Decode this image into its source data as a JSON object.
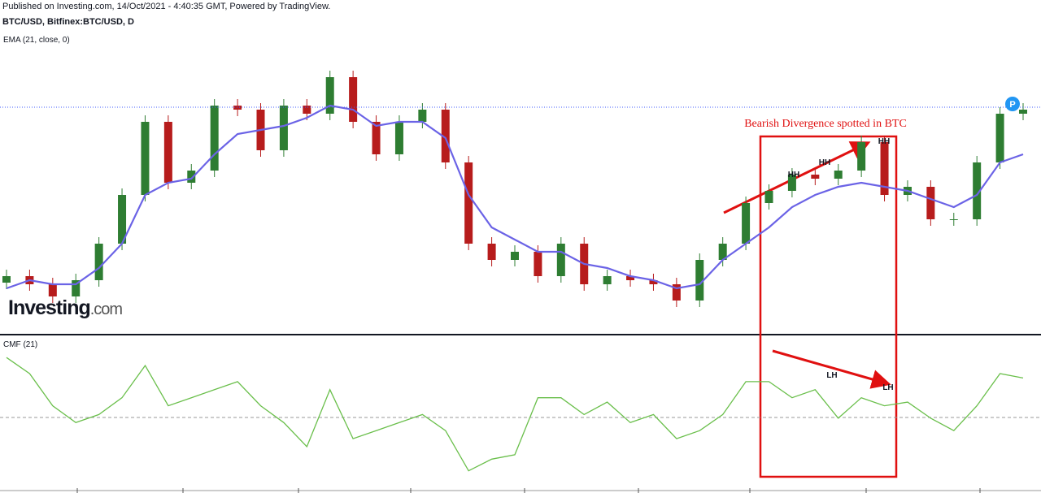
{
  "header": [
    "Published on Investing.com, 14/Oct/2021 - 4:40:35 GMT, Powered by TradingView.",
    "BTC/USD, Bitfinex:BTC/USD, D"
  ],
  "logo": {
    "brand": "Investing",
    "suffix": ".com"
  },
  "chart_data": [
    {
      "type": "candlestick",
      "open": [
        16,
        18,
        15.5,
        11.75,
        16.75,
        28,
        43,
        65.5,
        46.75,
        50.5,
        70.5,
        69.25,
        56.75,
        70.5,
        68,
        79.25,
        65.5,
        55.5,
        65.5,
        69.25,
        53,
        28,
        23,
        25.5,
        18,
        28,
        15.5,
        18,
        16.75,
        15.5,
        10.5,
        23,
        28,
        40.5,
        44.25,
        49.25,
        48,
        50.5,
        59.25,
        43,
        45.5,
        35.5,
        35.5,
        53,
        68
      ],
      "high": [
        20,
        20,
        17.5,
        18.75,
        30,
        45,
        67.5,
        67.5,
        52.5,
        72.5,
        72.5,
        71.25,
        72.5,
        72.5,
        81.25,
        81.25,
        67.5,
        67.5,
        71.25,
        71.25,
        55,
        30,
        27.5,
        27.5,
        30,
        30,
        20,
        20,
        18.75,
        17.5,
        25,
        30,
        42.5,
        46.25,
        51.25,
        51.25,
        52.5,
        61.25,
        61.25,
        47.5,
        47.5,
        37.5,
        55,
        70,
        71.25
      ],
      "low": [
        14,
        13.5,
        9.75,
        9.75,
        14.75,
        26,
        41,
        44.75,
        44.75,
        48.5,
        67.25,
        54.75,
        54.75,
        66,
        66,
        63.5,
        53.5,
        53.5,
        63.5,
        51,
        26,
        21,
        21,
        16,
        16,
        13.5,
        13.5,
        14.75,
        13.5,
        8.5,
        8.5,
        21,
        26,
        38.5,
        42.25,
        46,
        46,
        48.5,
        41,
        41,
        33.5,
        33.5,
        33.5,
        51,
        66
      ],
      "close": [
        18,
        15.5,
        11.75,
        16.75,
        28,
        43,
        65.5,
        46.75,
        50.5,
        70.5,
        69.25,
        56.75,
        70.5,
        68,
        79.25,
        65.5,
        55.5,
        65.5,
        69.25,
        53,
        28,
        23,
        25.5,
        18,
        28,
        15.5,
        18,
        16.75,
        15.5,
        10.5,
        23,
        28,
        40.5,
        44.25,
        49.25,
        48,
        50.5,
        59.25,
        43,
        45.5,
        35.5,
        35.5,
        53,
        68,
        69.25
      ],
      "up_color": "#2e7d32",
      "down_color": "#b71c1c",
      "series": [
        {
          "name": "EMA (21, close, 0)",
          "color": "#6b63e6",
          "values": [
            14.25,
            16.75,
            15.5,
            15.5,
            20.5,
            28,
            43,
            46.75,
            48,
            55.5,
            61.75,
            63,
            64.25,
            66.75,
            70.5,
            69.25,
            64.25,
            65.5,
            65.5,
            60.5,
            43,
            33,
            29.25,
            25.5,
            25.5,
            21.75,
            20.5,
            18,
            16.75,
            14.25,
            15.5,
            23,
            28,
            33,
            39.25,
            43,
            45.5,
            46.75,
            45.5,
            44.25,
            41.75,
            39.25,
            43,
            53,
            55.5
          ]
        }
      ],
      "price_line": 70,
      "marker_label": "P",
      "ylim": [
        0,
        100
      ],
      "annotations": [
        "Bearish Divergence spotted in BTC",
        "HH",
        "HH",
        "HH"
      ]
    },
    {
      "type": "line",
      "series": [
        {
          "name": "CMF (21)",
          "color": "#6abf4b",
          "values": [
            0.82,
            0.6,
            0.16,
            -0.07,
            0.04,
            0.27,
            0.71,
            0.16,
            0.27,
            0.38,
            0.49,
            0.16,
            -0.07,
            -0.4,
            0.38,
            -0.29,
            -0.18,
            -0.07,
            0.04,
            -0.18,
            -0.73,
            -0.57,
            -0.51,
            0.27,
            0.27,
            0.04,
            0.21,
            -0.07,
            0.04,
            -0.29,
            -0.18,
            0.04,
            0.49,
            0.49,
            0.27,
            0.38,
            -0.01,
            0.27,
            0.16,
            0.21,
            -0.01,
            -0.18,
            0.16,
            0.6,
            0.54
          ]
        }
      ],
      "zero_line": 0,
      "ylim": [
        -1,
        1
      ],
      "annotations": [
        "LH",
        "LH"
      ]
    }
  ]
}
